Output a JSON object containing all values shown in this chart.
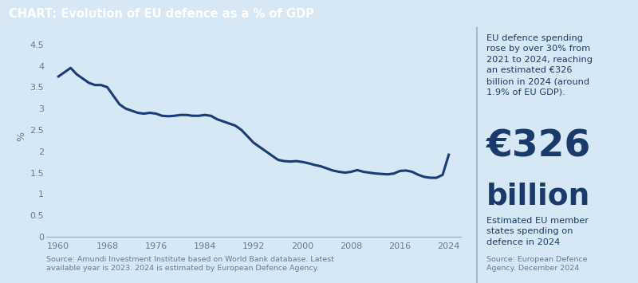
{
  "title": "CHART: Evolution of EU defence as a % of GDP",
  "title_bg_color": "#1a4a9a",
  "title_text_color": "#ffffff",
  "background_color": "#d6e8f5",
  "line_color": "#1a3a7c",
  "line_width": 2.2,
  "ylabel": "%",
  "ylim": [
    0,
    4.7
  ],
  "yticks": [
    0,
    0.5,
    1,
    1.5,
    2,
    2.5,
    3,
    3.5,
    4,
    4.5
  ],
  "xticks": [
    1960,
    1968,
    1976,
    1984,
    1992,
    2000,
    2008,
    2016,
    2024
  ],
  "source_text": "Source: Amundi Investment Institute based on World Bank database. Latest\navailable year is 2023. 2024 is estimated by European Defence Agency.",
  "right_source_text": "Source: European Defence\nAgency. December 2024",
  "right_text1": "EU defence spending\nrose by over 30% from\n2021 to 2024, reaching\nan estimated €326\nbillion in 2024 (around\n1.9% of EU GDP).",
  "right_big_text1": "€326",
  "right_big_text2": "billion",
  "right_small_text": "Estimated EU member\nstates spending on\ndefence in 2024",
  "divider_color": "#a0bdd0",
  "text_dark": "#1a3a6b",
  "text_gray": "#6a7a8a",
  "years": [
    1960,
    1961,
    1962,
    1963,
    1964,
    1965,
    1966,
    1967,
    1968,
    1969,
    1970,
    1971,
    1972,
    1973,
    1974,
    1975,
    1976,
    1977,
    1978,
    1979,
    1980,
    1981,
    1982,
    1983,
    1984,
    1985,
    1986,
    1987,
    1988,
    1989,
    1990,
    1991,
    1992,
    1993,
    1994,
    1995,
    1996,
    1997,
    1998,
    1999,
    2000,
    2001,
    2002,
    2003,
    2004,
    2005,
    2006,
    2007,
    2008,
    2009,
    2010,
    2011,
    2012,
    2013,
    2014,
    2015,
    2016,
    2017,
    2018,
    2019,
    2020,
    2021,
    2022,
    2023,
    2024
  ],
  "values": [
    3.75,
    3.85,
    3.95,
    3.8,
    3.7,
    3.6,
    3.55,
    3.55,
    3.5,
    3.3,
    3.1,
    3.0,
    2.95,
    2.9,
    2.88,
    2.9,
    2.88,
    2.83,
    2.82,
    2.83,
    2.85,
    2.85,
    2.83,
    2.83,
    2.85,
    2.83,
    2.75,
    2.7,
    2.65,
    2.6,
    2.5,
    2.35,
    2.2,
    2.1,
    2.0,
    1.9,
    1.8,
    1.77,
    1.76,
    1.77,
    1.75,
    1.72,
    1.68,
    1.65,
    1.6,
    1.55,
    1.52,
    1.5,
    1.52,
    1.56,
    1.52,
    1.5,
    1.48,
    1.47,
    1.46,
    1.48,
    1.54,
    1.55,
    1.52,
    1.45,
    1.4,
    1.38,
    1.38,
    1.45,
    1.92
  ]
}
